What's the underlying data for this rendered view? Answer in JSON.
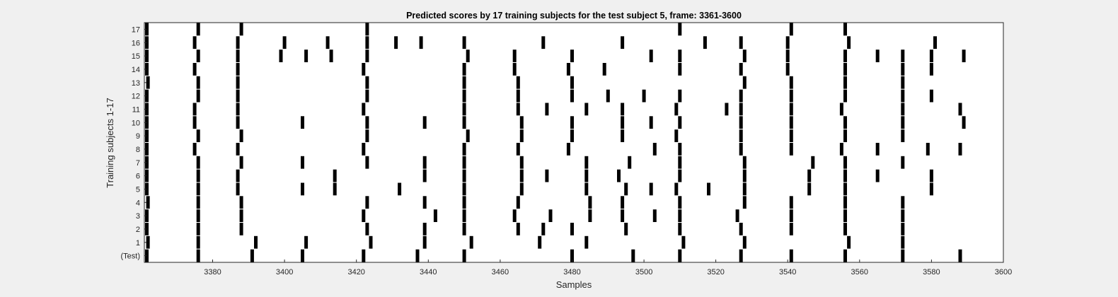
{
  "chart_data": {
    "type": "raster",
    "title": "Predicted scores by 17 training subjects for the test subject 5, frame: 3361-3600",
    "xlabel": "Samples",
    "ylabel": "Training subjects 1-17",
    "xlim": [
      3361,
      3600
    ],
    "xticks": [
      3380,
      3400,
      3420,
      3440,
      3460,
      3480,
      3500,
      3520,
      3540,
      3560,
      3580,
      3600
    ],
    "xtick_labels": [
      "3380",
      "3400",
      "3420",
      "3440",
      "3460",
      "3480",
      "3500",
      "3520",
      "3540",
      "3560",
      "3580",
      "3600"
    ],
    "grid": false,
    "rows": [
      {
        "label": "(Test)",
        "events": [
          3361,
          3376,
          3391,
          3405,
          3422,
          3437,
          3450,
          3480,
          3497,
          3510,
          3527,
          3541,
          3556,
          3572,
          3588
        ]
      },
      {
        "label": "1",
        "events": [
          3362,
          3376,
          3392,
          3406,
          3424,
          3439,
          3452,
          3471,
          3484,
          3511,
          3528,
          3557,
          3572
        ]
      },
      {
        "label": "2",
        "events": [
          3361,
          3376,
          3388,
          3423,
          3439,
          3450,
          3465,
          3472,
          3480,
          3495,
          3510,
          3527,
          3541,
          3556,
          3572
        ]
      },
      {
        "label": "3",
        "events": [
          3361,
          3376,
          3388,
          3422,
          3442,
          3450,
          3464,
          3474,
          3485,
          3494,
          3503,
          3510,
          3526,
          3541,
          3556,
          3572
        ]
      },
      {
        "label": "4",
        "events": [
          3362,
          3376,
          3388,
          3423,
          3439,
          3450,
          3465,
          3485,
          3494,
          3510,
          3528,
          3541,
          3556,
          3572
        ]
      },
      {
        "label": "5",
        "events": [
          3361,
          3376,
          3387,
          3405,
          3414,
          3432,
          3450,
          3466,
          3484,
          3495,
          3502,
          3509,
          3518,
          3528,
          3546,
          3556,
          3580
        ]
      },
      {
        "label": "6",
        "events": [
          3361,
          3376,
          3387,
          3414,
          3439,
          3450,
          3466,
          3473,
          3484,
          3493,
          3510,
          3528,
          3546,
          3556,
          3565,
          3580
        ]
      },
      {
        "label": "7",
        "events": [
          3361,
          3376,
          3388,
          3405,
          3423,
          3439,
          3450,
          3466,
          3484,
          3496,
          3510,
          3528,
          3547,
          3556,
          3572
        ]
      },
      {
        "label": "8",
        "events": [
          3360,
          3375,
          3387,
          3422,
          3450,
          3465,
          3479,
          3503,
          3510,
          3527,
          3541,
          3555,
          3565,
          3579,
          3588
        ]
      },
      {
        "label": "9",
        "events": [
          3361,
          3376,
          3388,
          3423,
          3451,
          3466,
          3480,
          3494,
          3509,
          3527,
          3541,
          3556,
          3572
        ]
      },
      {
        "label": "10",
        "events": [
          3361,
          3375,
          3387,
          3405,
          3423,
          3439,
          3450,
          3466,
          3480,
          3494,
          3502,
          3510,
          3527,
          3541,
          3556,
          3572,
          3589
        ]
      },
      {
        "label": "11",
        "events": [
          3361,
          3375,
          3387,
          3422,
          3450,
          3465,
          3473,
          3484,
          3494,
          3509,
          3523,
          3527,
          3541,
          3555,
          3572,
          3588
        ]
      },
      {
        "label": "12",
        "events": [
          3361,
          3376,
          3387,
          3423,
          3450,
          3465,
          3480,
          3490,
          3500,
          3510,
          3527,
          3541,
          3556,
          3572,
          3580
        ]
      },
      {
        "label": "13",
        "events": [
          3362,
          3376,
          3387,
          3423,
          3450,
          3465,
          3480,
          3528,
          3541,
          3556,
          3572
        ]
      },
      {
        "label": "14",
        "events": [
          3361,
          3375,
          3387,
          3422,
          3450,
          3464,
          3479,
          3489,
          3510,
          3527,
          3540,
          3556,
          3572,
          3580
        ]
      },
      {
        "label": "15",
        "events": [
          3361,
          3376,
          3387,
          3399,
          3406,
          3413,
          3423,
          3451,
          3464,
          3480,
          3502,
          3510,
          3528,
          3540,
          3556,
          3565,
          3572,
          3580,
          3589
        ]
      },
      {
        "label": "16",
        "events": [
          3361,
          3375,
          3387,
          3400,
          3412,
          3423,
          3431,
          3438,
          3450,
          3472,
          3494,
          3517,
          3527,
          3540,
          3557,
          3581
        ]
      },
      {
        "label": "17",
        "events": [
          3361,
          3376,
          3388,
          3423,
          3510,
          3541,
          3556
        ]
      }
    ]
  },
  "colors": {
    "background": "#f0f0f0",
    "plot_background": "#ffffff",
    "axis": "#262626",
    "mark": "#000000"
  }
}
